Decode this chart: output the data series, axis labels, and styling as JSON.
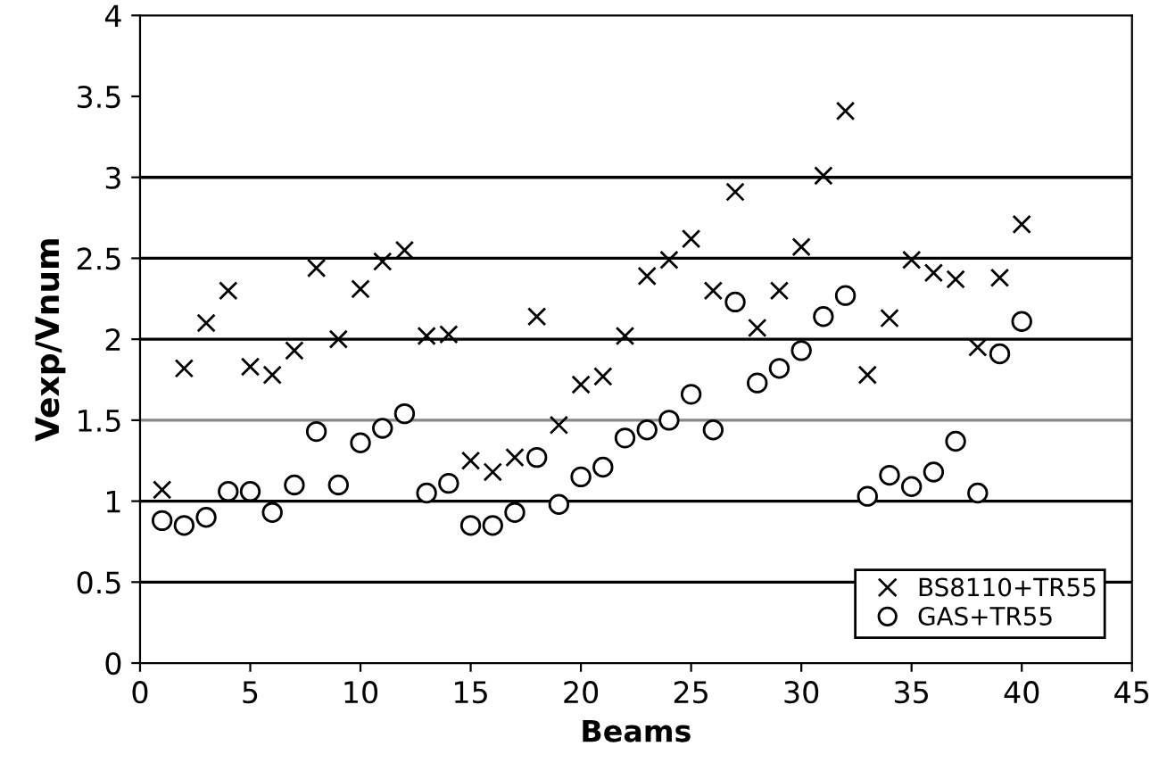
{
  "chart_data": {
    "type": "scatter",
    "xlabel": "Beams",
    "ylabel": "Vexp/Vnum",
    "xlim": [
      0,
      45
    ],
    "xticks": [
      0,
      5,
      10,
      15,
      20,
      25,
      30,
      35,
      40,
      45
    ],
    "ylim": [
      0,
      4
    ],
    "yticks": [
      0,
      0.5,
      1,
      1.5,
      2,
      2.5,
      3,
      3.5,
      4
    ],
    "grid": false,
    "legend": "bottom right",
    "x": [
      1,
      2,
      3,
      4,
      5,
      6,
      7,
      8,
      9,
      10,
      11,
      12,
      13,
      14,
      15,
      16,
      17,
      18,
      19,
      20,
      21,
      22,
      23,
      24,
      25,
      26,
      27,
      28,
      29,
      30,
      31,
      32,
      33,
      34,
      35,
      36,
      37,
      38,
      39,
      40
    ],
    "series": [
      {
        "name": "BS8110+TR55",
        "color": "#000000",
        "marker": "cross",
        "values": [
          1.07,
          1.82,
          2.1,
          2.3,
          1.83,
          1.78,
          1.93,
          2.44,
          2.0,
          2.31,
          2.48,
          2.55,
          2.02,
          2.03,
          1.25,
          1.18,
          1.27,
          2.14,
          1.47,
          1.72,
          1.77,
          2.02,
          2.39,
          2.49,
          2.62,
          2.3,
          2.91,
          2.07,
          2.3,
          2.57,
          3.01,
          3.41,
          1.78,
          2.13,
          2.49,
          2.41,
          2.37,
          1.95,
          2.38,
          2.71
        ]
      },
      {
        "name": "GAS+TR55",
        "color": "#000000",
        "marker": "circle",
        "values": [
          0.88,
          0.85,
          0.9,
          1.06,
          1.06,
          0.93,
          1.1,
          1.43,
          1.1,
          1.36,
          1.45,
          1.54,
          1.05,
          1.11,
          0.85,
          0.85,
          0.93,
          1.27,
          0.98,
          1.15,
          1.21,
          1.39,
          1.44,
          1.5,
          1.66,
          1.44,
          2.23,
          1.73,
          1.82,
          1.93,
          2.14,
          2.27,
          1.03,
          1.16,
          1.09,
          1.18,
          1.37,
          1.05,
          1.91,
          2.11
        ]
      }
    ],
    "ref_lines": [
      {
        "axis": "y",
        "value": 0.5,
        "color": "#000000"
      },
      {
        "axis": "y",
        "value": 1,
        "color": "#000000"
      },
      {
        "axis": "y",
        "value": 1.5,
        "color": "#888888"
      },
      {
        "axis": "y",
        "value": 2,
        "color": "#000000"
      },
      {
        "axis": "y",
        "value": 2.5,
        "color": "#000000"
      },
      {
        "axis": "y",
        "value": 3,
        "color": "#000000"
      }
    ]
  }
}
